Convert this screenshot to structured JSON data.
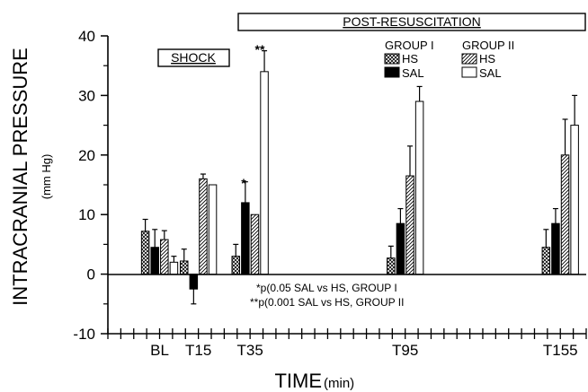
{
  "chart_data": {
    "type": "bar",
    "title": "",
    "ylabel": "INTRACRANIAL PRESSURE",
    "ylabel_unit": "(mm Hg)",
    "xlabel": "TIME",
    "xlabel_unit": "(min)",
    "ylim": [
      -10,
      40
    ],
    "yticks": [
      -10,
      0,
      10,
      20,
      30,
      40
    ],
    "ytick_labels": [
      "-10",
      "0",
      "10",
      "20",
      "30",
      "40"
    ],
    "xlim": [
      -20,
      165
    ],
    "categories": [
      "BL",
      "T15",
      "T35",
      "T95",
      "T155"
    ],
    "category_times": [
      0,
      15,
      35,
      95,
      155
    ],
    "grid": false,
    "legend_position": "top-right",
    "legend": {
      "group1_title": "GROUP I",
      "group2_title": "GROUP II",
      "group1_hs": "HS",
      "group1_sal": "SAL",
      "group2_hs": "HS",
      "group2_sal": "SAL"
    },
    "series": [
      {
        "name": "GROUP I HS",
        "values": [
          7.2,
          2.2,
          3.0,
          2.7,
          4.5
        ],
        "errors": [
          2.0,
          2.0,
          2.0,
          2.0,
          3.0
        ],
        "color": "#000000",
        "fill": "crosshatch"
      },
      {
        "name": "GROUP I SAL",
        "values": [
          4.5,
          -2.5,
          12.0,
          8.5,
          8.5
        ],
        "errors": [
          3.0,
          2.5,
          3.5,
          2.5,
          2.5
        ],
        "color": "#000000",
        "fill": "solid"
      },
      {
        "name": "GROUP II HS",
        "values": [
          5.8,
          16.0,
          10.0,
          16.5,
          20.0
        ],
        "errors": [
          1.5,
          0.8,
          0.0,
          5.0,
          6.0
        ],
        "color": "#000000",
        "fill": "diagonal"
      },
      {
        "name": "GROUP II SAL",
        "values": [
          2.0,
          15.0,
          34.0,
          29.0,
          25.0
        ],
        "errors": [
          1.0,
          0.0,
          3.5,
          2.5,
          5.0
        ],
        "color": "#000000",
        "fill": "empty"
      }
    ],
    "annotations": {
      "post_resuscitation": "POST-RESUSCITATION",
      "shock": "SHOCK",
      "single_star": "*",
      "double_star": "**",
      "footnote1": "*p(0.05 SAL vs HS, GROUP I",
      "footnote2": "**p(0.001 SAL vs HS, GROUP II"
    }
  }
}
